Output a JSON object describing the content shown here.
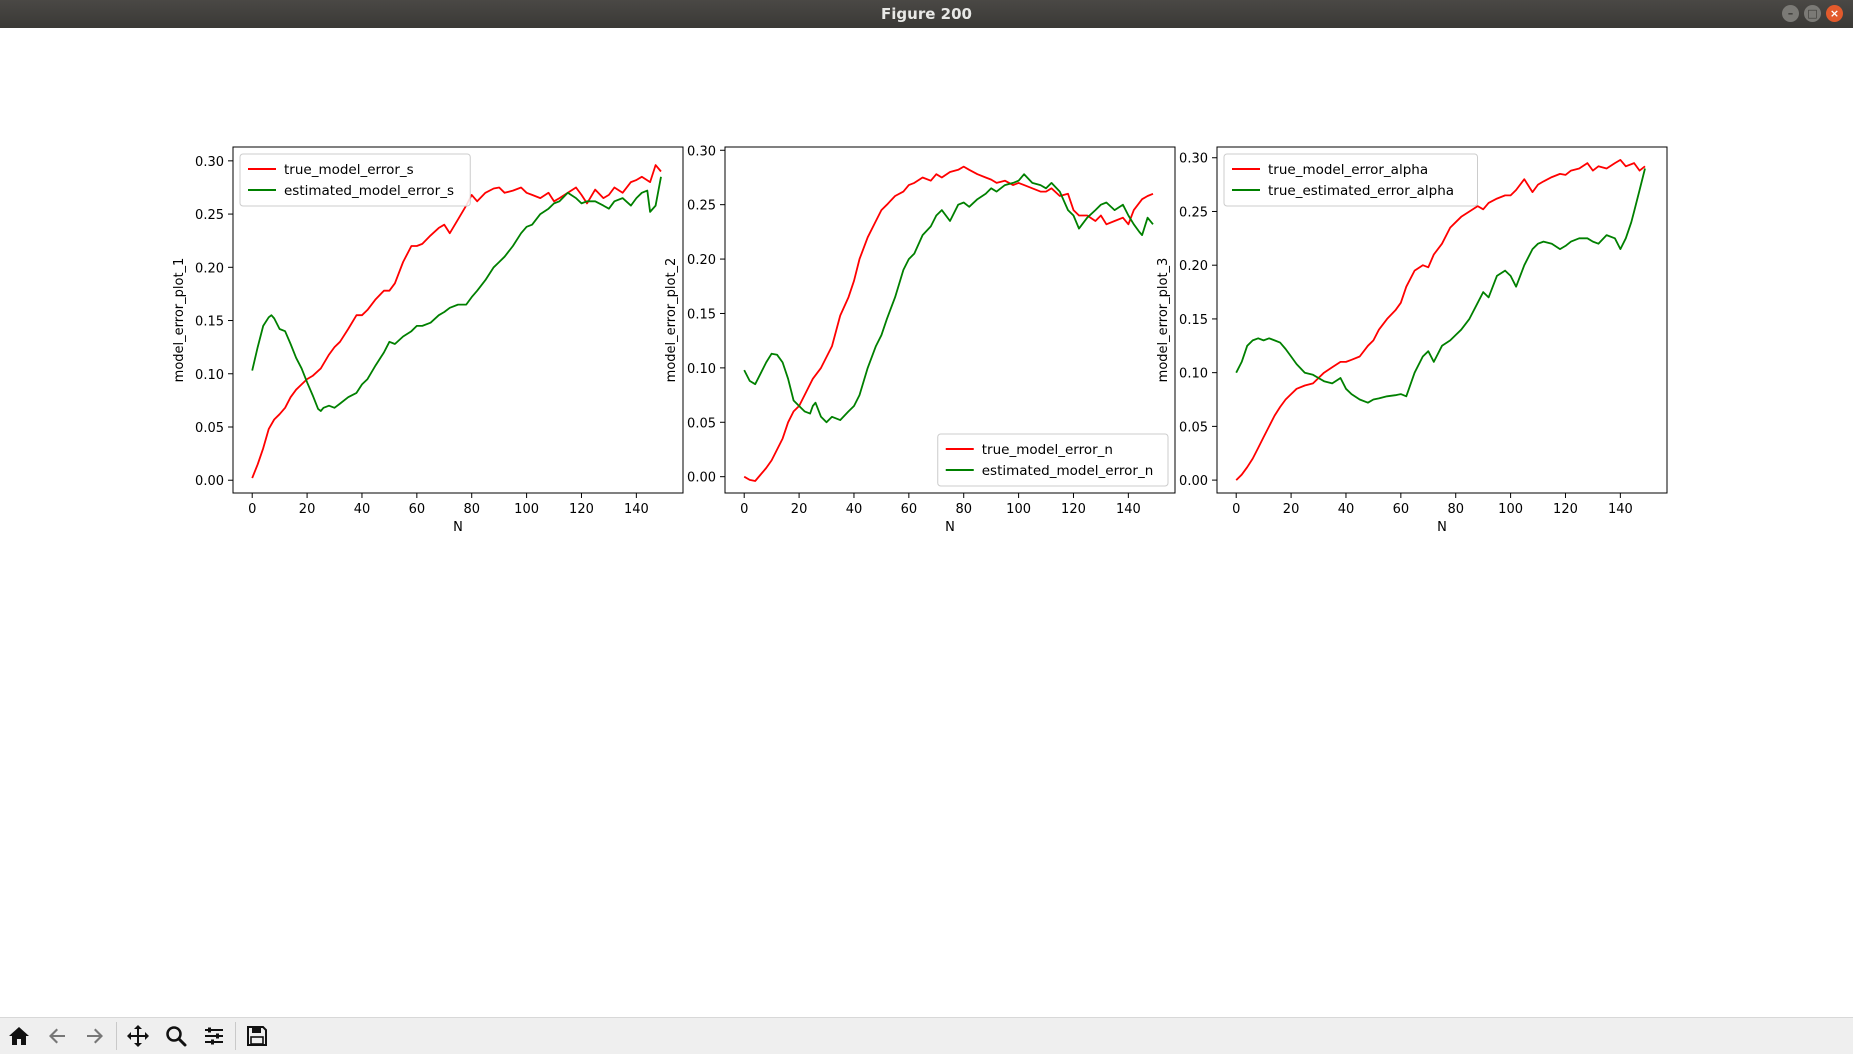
{
  "window": {
    "title": "Figure 200"
  },
  "toolbar": {
    "icons": [
      "home-icon",
      "back-icon",
      "forward-icon",
      "pan-icon",
      "zoom-icon",
      "configure-subplots-icon",
      "save-icon"
    ]
  },
  "colors": {
    "true": "#ff0000",
    "estimated": "#008000"
  },
  "chart_data": [
    {
      "type": "line",
      "xlabel": "N",
      "ylabel": "model_error_plot_1",
      "xlim": [
        -7,
        157
      ],
      "ylim": [
        -0.012,
        0.313
      ],
      "xticks": [
        0,
        20,
        40,
        60,
        80,
        100,
        120,
        140
      ],
      "yticks": [
        0.0,
        0.05,
        0.1,
        0.15,
        0.2,
        0.25,
        0.3
      ],
      "ytick_labels": [
        "0.00",
        "0.05",
        "0.10",
        "0.15",
        "0.20",
        "0.25",
        "0.30"
      ],
      "legend_position": "upper-left",
      "series": [
        {
          "name": "true_model_error_s",
          "color": "#ff0000",
          "x": [
            0,
            2,
            4,
            6,
            8,
            10,
            12,
            14,
            16,
            18,
            20,
            22,
            25,
            28,
            30,
            32,
            35,
            38,
            40,
            42,
            45,
            48,
            50,
            52,
            55,
            58,
            60,
            62,
            65,
            68,
            70,
            72,
            75,
            78,
            80,
            82,
            85,
            88,
            90,
            92,
            95,
            98,
            100,
            102,
            105,
            108,
            110,
            112,
            115,
            118,
            120,
            122,
            125,
            128,
            130,
            132,
            135,
            138,
            140,
            142,
            145,
            147,
            149
          ],
          "y": [
            0.002,
            0.015,
            0.03,
            0.048,
            0.057,
            0.062,
            0.068,
            0.078,
            0.085,
            0.09,
            0.095,
            0.098,
            0.105,
            0.118,
            0.125,
            0.13,
            0.142,
            0.155,
            0.155,
            0.16,
            0.17,
            0.178,
            0.178,
            0.185,
            0.205,
            0.22,
            0.22,
            0.222,
            0.23,
            0.237,
            0.24,
            0.232,
            0.245,
            0.258,
            0.268,
            0.262,
            0.27,
            0.274,
            0.275,
            0.27,
            0.272,
            0.275,
            0.27,
            0.268,
            0.265,
            0.27,
            0.262,
            0.265,
            0.27,
            0.275,
            0.268,
            0.26,
            0.273,
            0.265,
            0.268,
            0.275,
            0.27,
            0.28,
            0.282,
            0.285,
            0.28,
            0.296,
            0.29
          ]
        },
        {
          "name": "estimated_model_error_s",
          "color": "#008000",
          "x": [
            0,
            2,
            4,
            6,
            7,
            8,
            10,
            12,
            14,
            16,
            18,
            20,
            22,
            24,
            25,
            26,
            28,
            30,
            32,
            35,
            38,
            40,
            42,
            45,
            48,
            50,
            52,
            55,
            58,
            60,
            62,
            65,
            68,
            70,
            72,
            75,
            78,
            80,
            82,
            85,
            88,
            90,
            92,
            95,
            98,
            100,
            102,
            105,
            108,
            110,
            112,
            115,
            118,
            120,
            122,
            125,
            128,
            130,
            132,
            135,
            138,
            140,
            142,
            144,
            145,
            147,
            149
          ],
          "y": [
            0.103,
            0.125,
            0.145,
            0.153,
            0.155,
            0.152,
            0.142,
            0.14,
            0.128,
            0.115,
            0.105,
            0.092,
            0.08,
            0.067,
            0.065,
            0.068,
            0.07,
            0.068,
            0.072,
            0.078,
            0.082,
            0.09,
            0.095,
            0.108,
            0.12,
            0.13,
            0.128,
            0.135,
            0.14,
            0.145,
            0.145,
            0.148,
            0.155,
            0.158,
            0.162,
            0.165,
            0.165,
            0.172,
            0.178,
            0.188,
            0.2,
            0.205,
            0.21,
            0.22,
            0.232,
            0.238,
            0.24,
            0.25,
            0.255,
            0.26,
            0.262,
            0.27,
            0.265,
            0.26,
            0.262,
            0.262,
            0.258,
            0.255,
            0.262,
            0.265,
            0.258,
            0.265,
            0.27,
            0.272,
            0.252,
            0.258,
            0.285
          ]
        }
      ]
    },
    {
      "type": "line",
      "xlabel": "N",
      "ylabel": "model_error_plot_2",
      "xlim": [
        -7,
        157
      ],
      "ylim": [
        -0.015,
        0.303
      ],
      "xticks": [
        0,
        20,
        40,
        60,
        80,
        100,
        120,
        140
      ],
      "yticks": [
        0.0,
        0.05,
        0.1,
        0.15,
        0.2,
        0.25,
        0.3
      ],
      "ytick_labels": [
        "0.00",
        "0.05",
        "0.10",
        "0.15",
        "0.20",
        "0.25",
        "0.30"
      ],
      "legend_position": "lower-right",
      "series": [
        {
          "name": "true_model_error_n",
          "color": "#ff0000",
          "x": [
            0,
            2,
            4,
            6,
            8,
            10,
            12,
            14,
            16,
            18,
            20,
            22,
            25,
            28,
            30,
            32,
            35,
            38,
            40,
            42,
            45,
            48,
            50,
            52,
            55,
            58,
            60,
            62,
            65,
            68,
            70,
            72,
            75,
            78,
            80,
            82,
            85,
            88,
            90,
            92,
            95,
            98,
            100,
            102,
            105,
            108,
            110,
            112,
            115,
            118,
            120,
            122,
            125,
            128,
            130,
            132,
            135,
            138,
            140,
            142,
            145,
            147,
            149
          ],
          "y": [
            0.0,
            -0.003,
            -0.004,
            0.002,
            0.008,
            0.015,
            0.025,
            0.035,
            0.05,
            0.06,
            0.065,
            0.075,
            0.09,
            0.1,
            0.11,
            0.12,
            0.148,
            0.165,
            0.18,
            0.2,
            0.22,
            0.235,
            0.245,
            0.25,
            0.258,
            0.262,
            0.268,
            0.27,
            0.275,
            0.272,
            0.278,
            0.275,
            0.28,
            0.282,
            0.285,
            0.282,
            0.278,
            0.275,
            0.273,
            0.27,
            0.272,
            0.268,
            0.27,
            0.268,
            0.265,
            0.262,
            0.262,
            0.265,
            0.258,
            0.26,
            0.245,
            0.24,
            0.24,
            0.235,
            0.24,
            0.232,
            0.235,
            0.238,
            0.232,
            0.245,
            0.255,
            0.258,
            0.26
          ]
        },
        {
          "name": "estimated_model_error_n",
          "color": "#008000",
          "x": [
            0,
            2,
            4,
            6,
            8,
            10,
            12,
            14,
            16,
            18,
            20,
            22,
            24,
            25,
            26,
            28,
            30,
            32,
            35,
            38,
            40,
            42,
            45,
            48,
            50,
            52,
            55,
            58,
            60,
            62,
            65,
            68,
            70,
            72,
            75,
            78,
            80,
            82,
            85,
            88,
            90,
            92,
            95,
            98,
            100,
            102,
            105,
            108,
            110,
            112,
            115,
            118,
            120,
            122,
            125,
            128,
            130,
            132,
            135,
            138,
            140,
            142,
            144,
            145,
            147,
            149
          ],
          "y": [
            0.098,
            0.088,
            0.085,
            0.095,
            0.105,
            0.113,
            0.112,
            0.105,
            0.09,
            0.07,
            0.065,
            0.06,
            0.058,
            0.065,
            0.068,
            0.055,
            0.05,
            0.055,
            0.052,
            0.06,
            0.065,
            0.075,
            0.1,
            0.12,
            0.13,
            0.145,
            0.165,
            0.19,
            0.2,
            0.205,
            0.222,
            0.23,
            0.24,
            0.245,
            0.235,
            0.25,
            0.252,
            0.248,
            0.255,
            0.26,
            0.265,
            0.262,
            0.268,
            0.27,
            0.272,
            0.278,
            0.27,
            0.268,
            0.265,
            0.27,
            0.262,
            0.245,
            0.24,
            0.228,
            0.238,
            0.245,
            0.25,
            0.252,
            0.245,
            0.25,
            0.24,
            0.232,
            0.225,
            0.222,
            0.238,
            0.232
          ]
        }
      ]
    },
    {
      "type": "line",
      "xlabel": "N",
      "ylabel": "model_error_plot_3",
      "xlim": [
        -7,
        157
      ],
      "ylim": [
        -0.012,
        0.31
      ],
      "xticks": [
        0,
        20,
        40,
        60,
        80,
        100,
        120,
        140
      ],
      "yticks": [
        0.0,
        0.05,
        0.1,
        0.15,
        0.2,
        0.25,
        0.3
      ],
      "ytick_labels": [
        "0.00",
        "0.05",
        "0.10",
        "0.15",
        "0.20",
        "0.25",
        "0.30"
      ],
      "legend_position": "upper-left",
      "series": [
        {
          "name": "true_model_error_alpha",
          "color": "#ff0000",
          "x": [
            0,
            2,
            4,
            6,
            8,
            10,
            12,
            14,
            16,
            18,
            20,
            22,
            25,
            28,
            30,
            32,
            35,
            38,
            40,
            42,
            45,
            48,
            50,
            52,
            55,
            58,
            60,
            62,
            65,
            68,
            70,
            72,
            75,
            78,
            80,
            82,
            85,
            88,
            90,
            92,
            95,
            98,
            100,
            102,
            105,
            108,
            110,
            112,
            115,
            118,
            120,
            122,
            125,
            128,
            130,
            132,
            135,
            138,
            140,
            142,
            145,
            147,
            149
          ],
          "y": [
            0.0,
            0.005,
            0.012,
            0.02,
            0.03,
            0.04,
            0.05,
            0.06,
            0.068,
            0.075,
            0.08,
            0.085,
            0.088,
            0.09,
            0.095,
            0.1,
            0.105,
            0.11,
            0.11,
            0.112,
            0.115,
            0.125,
            0.13,
            0.14,
            0.15,
            0.158,
            0.165,
            0.18,
            0.195,
            0.2,
            0.198,
            0.21,
            0.22,
            0.235,
            0.24,
            0.245,
            0.25,
            0.255,
            0.252,
            0.258,
            0.262,
            0.265,
            0.265,
            0.27,
            0.28,
            0.268,
            0.275,
            0.278,
            0.282,
            0.285,
            0.284,
            0.288,
            0.29,
            0.295,
            0.288,
            0.292,
            0.29,
            0.295,
            0.298,
            0.292,
            0.295,
            0.288,
            0.292
          ]
        },
        {
          "name": "true_estimated_error_alpha",
          "color": "#008000",
          "x": [
            0,
            2,
            4,
            6,
            8,
            10,
            12,
            14,
            16,
            18,
            20,
            22,
            25,
            28,
            30,
            32,
            35,
            38,
            40,
            42,
            45,
            48,
            50,
            52,
            55,
            58,
            60,
            62,
            65,
            68,
            70,
            72,
            75,
            78,
            80,
            82,
            85,
            88,
            90,
            92,
            95,
            98,
            100,
            102,
            105,
            108,
            110,
            112,
            115,
            118,
            120,
            122,
            125,
            128,
            130,
            132,
            135,
            138,
            140,
            142,
            144,
            145,
            147,
            149
          ],
          "y": [
            0.1,
            0.11,
            0.125,
            0.13,
            0.132,
            0.13,
            0.132,
            0.13,
            0.128,
            0.122,
            0.115,
            0.108,
            0.1,
            0.098,
            0.095,
            0.092,
            0.09,
            0.095,
            0.085,
            0.08,
            0.075,
            0.072,
            0.075,
            0.076,
            0.078,
            0.079,
            0.08,
            0.078,
            0.1,
            0.115,
            0.12,
            0.11,
            0.125,
            0.13,
            0.135,
            0.14,
            0.15,
            0.165,
            0.175,
            0.17,
            0.19,
            0.195,
            0.19,
            0.18,
            0.2,
            0.215,
            0.22,
            0.222,
            0.22,
            0.215,
            0.218,
            0.222,
            0.225,
            0.225,
            0.222,
            0.22,
            0.228,
            0.225,
            0.215,
            0.225,
            0.24,
            0.25,
            0.27,
            0.29
          ]
        }
      ]
    }
  ]
}
